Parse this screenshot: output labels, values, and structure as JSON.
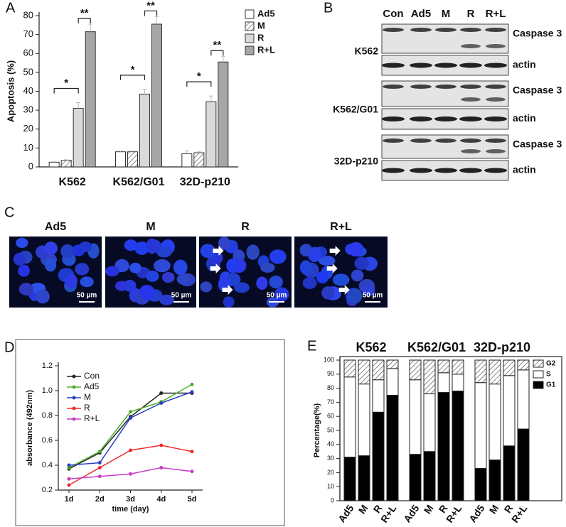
{
  "chart_data": [
    {
      "type": "bar",
      "panel_label": "A",
      "y_label": "Apoptosis (%)",
      "categories": [
        "K562",
        "K562/G01",
        "32D-p210"
      ],
      "series": [
        {
          "name": "Ad5",
          "color": "#ffffff",
          "values": [
            2.5,
            8,
            7
          ],
          "errors": [
            0.3,
            0.4,
            1.5
          ]
        },
        {
          "name": "M",
          "color": "#ffffff",
          "hatch": true,
          "values": [
            3.5,
            8,
            7.5
          ],
          "errors": [
            0.3,
            0.4,
            0.5
          ]
        },
        {
          "name": "R",
          "color": "#d9d9d9",
          "values": [
            31,
            38.5,
            34.5
          ],
          "errors": [
            3,
            2.5,
            3
          ]
        },
        {
          "name": "R+L",
          "color": "#a6a6a6",
          "values": [
            71.5,
            75.5,
            55.5
          ],
          "errors": [
            4,
            4,
            3
          ]
        }
      ],
      "annotations": [
        "*",
        "**",
        "*",
        "**",
        "*",
        "**"
      ],
      "ylim": [
        0,
        80
      ],
      "yticks": [
        0,
        10,
        20,
        30,
        40,
        50,
        60,
        70,
        80
      ],
      "legend": "right"
    },
    {
      "type": "line",
      "panel_label": "D",
      "x_label": "time (day)",
      "y_label": "absorbance (492nm)",
      "categories": [
        "1d",
        "2d",
        "3d",
        "4d",
        "5d"
      ],
      "series": [
        {
          "name": "Con",
          "color": "#222222",
          "values": [
            0.37,
            0.5,
            0.79,
            0.98,
            0.98
          ]
        },
        {
          "name": "Ad5",
          "color": "#4caf28",
          "values": [
            0.38,
            0.51,
            0.83,
            0.91,
            1.05
          ]
        },
        {
          "name": "M",
          "color": "#2b3fc2",
          "values": [
            0.4,
            0.42,
            0.78,
            0.9,
            0.99
          ]
        },
        {
          "name": "R",
          "color": "#ee2a2a",
          "values": [
            0.24,
            0.38,
            0.52,
            0.56,
            0.51
          ]
        },
        {
          "name": "R+L",
          "color": "#c83cc8",
          "values": [
            0.29,
            0.31,
            0.33,
            0.38,
            0.35
          ]
        }
      ],
      "ylim": [
        0.2,
        1.2
      ],
      "yticks": [
        0.2,
        0.4,
        0.6,
        0.8,
        {
          "value": 1,
          "label": "1.0"
        },
        1.2
      ],
      "legend": "upper left"
    },
    {
      "type": "stacked-bar",
      "panel_label": "E",
      "y_label": "Percentage(%)",
      "groups": [
        "K562",
        "K562/G01",
        "32D-p210"
      ],
      "categories": [
        "Ad5",
        "M",
        "R",
        "R+L",
        "Ad5",
        "M",
        "R",
        "R+L",
        "Ad5",
        "M",
        "R",
        "R+L"
      ],
      "series": [
        {
          "name": "G2",
          "color": "#ffffff",
          "hatch": true,
          "values": [
            12,
            17,
            14,
            6,
            14,
            24,
            9,
            10,
            16,
            17,
            11,
            7
          ]
        },
        {
          "name": "S",
          "color": "#ffffff",
          "values": [
            57,
            51,
            23,
            19,
            53,
            41,
            14,
            12,
            61,
            54,
            50,
            42
          ]
        },
        {
          "name": "G1",
          "color": "#000000",
          "values": [
            31,
            32,
            63,
            75,
            33,
            35,
            77,
            78,
            23,
            29,
            39,
            51
          ]
        }
      ],
      "ylim": [
        0,
        100
      ],
      "yticks": [
        0,
        10,
        20,
        30,
        40,
        50,
        60,
        70,
        80,
        90,
        100
      ],
      "legend": "upper right"
    }
  ],
  "blot": {
    "panel_label": "B",
    "lanes": [
      "Con",
      "Ad5",
      "M",
      "R",
      "R+L"
    ],
    "rows": [
      {
        "cell_line": "K562",
        "proteins": [
          "Caspase 3",
          "actin"
        ]
      },
      {
        "cell_line": "K562/G01",
        "proteins": [
          "Caspase 3",
          "actin"
        ]
      },
      {
        "cell_line": "32D-p210",
        "proteins": [
          "Caspase 3",
          "actin"
        ]
      }
    ]
  },
  "micrograph": {
    "panel_label": "C",
    "images": [
      {
        "label": "Ad5",
        "scale_bar": "50 µm"
      },
      {
        "label": "M",
        "scale_bar": "50 µm"
      },
      {
        "label": "R",
        "scale_bar": "50 µm"
      },
      {
        "label": "R+L",
        "scale_bar": "50 µm"
      }
    ]
  }
}
